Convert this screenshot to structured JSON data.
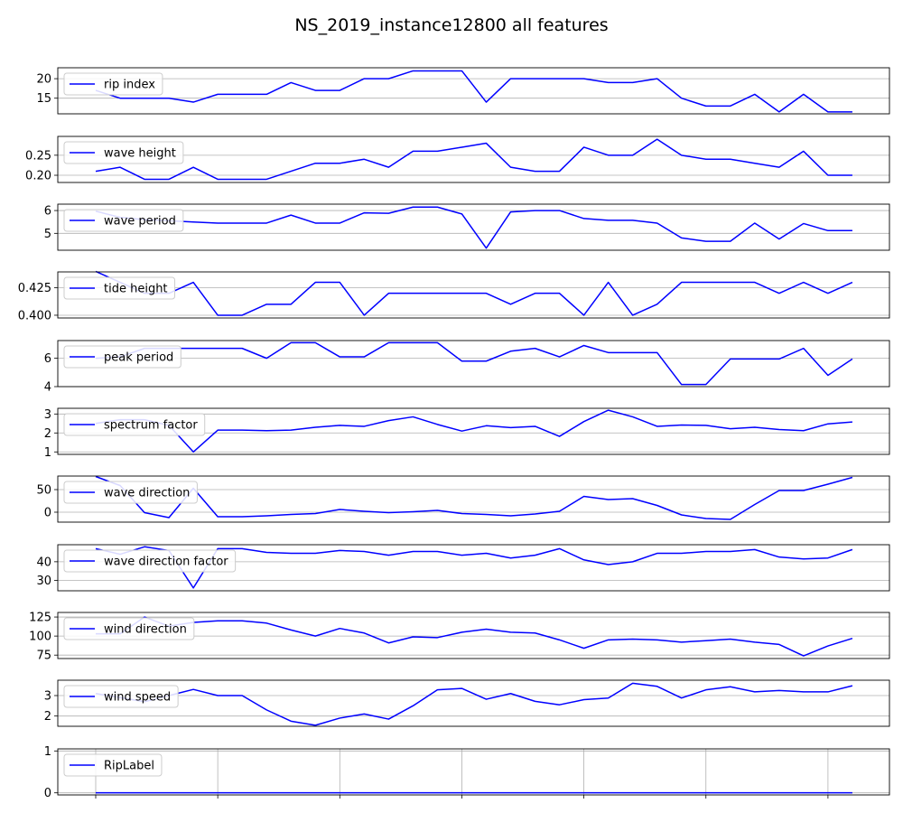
{
  "figure": {
    "title": "NS_2019_instance12800 all features"
  },
  "colors": {
    "series": "#0000ff",
    "grid": "#b0b0b0",
    "axis": "#000000",
    "legend_border": "#cccccc"
  },
  "chart_data": {
    "type": "line",
    "grid": true,
    "legend_placement": "upper-left",
    "n_points": 32,
    "xticks_count": 7,
    "panels": [
      {
        "name": "rip index",
        "ylim": [
          11,
          22.8
        ],
        "yticks": [
          15,
          20
        ],
        "ytick_labels": [
          "15",
          "20"
        ],
        "values": [
          17,
          15,
          15,
          15,
          14,
          16,
          16,
          16,
          19,
          17,
          17,
          20,
          20,
          22,
          22,
          22,
          14,
          20,
          20,
          20,
          20,
          19,
          19,
          20,
          15,
          13,
          13,
          16,
          11.5,
          16,
          11.5,
          11.5
        ]
      },
      {
        "name": "wave height",
        "ylim": [
          0.182,
          0.297
        ],
        "yticks": [
          0.2,
          0.25
        ],
        "ytick_labels": [
          "0.20",
          "0.25"
        ],
        "values": [
          0.21,
          0.22,
          0.19,
          0.19,
          0.22,
          0.19,
          0.19,
          0.19,
          0.21,
          0.23,
          0.23,
          0.24,
          0.22,
          0.26,
          0.26,
          0.27,
          0.28,
          0.22,
          0.21,
          0.21,
          0.27,
          0.25,
          0.25,
          0.29,
          0.25,
          0.24,
          0.24,
          0.23,
          0.22,
          0.26,
          0.2,
          0.2
        ]
      },
      {
        "name": "wave period",
        "ylim": [
          4.26,
          6.28
        ],
        "yticks": [
          5,
          6
        ],
        "ytick_labels": [
          "5",
          "6"
        ],
        "values": [
          5.97,
          5.7,
          5.6,
          5.55,
          5.5,
          5.45,
          5.45,
          5.45,
          5.8,
          5.45,
          5.45,
          5.9,
          5.88,
          6.15,
          6.15,
          5.85,
          4.35,
          5.94,
          6.0,
          6.0,
          5.65,
          5.57,
          5.57,
          5.45,
          4.8,
          4.65,
          4.65,
          5.45,
          4.75,
          5.43,
          5.12,
          5.12
        ]
      },
      {
        "name": "tide height",
        "ylim": [
          0.3975,
          0.4395
        ],
        "yticks": [
          0.4,
          0.425
        ],
        "ytick_labels": [
          "0.400",
          "0.425"
        ],
        "values": [
          0.44,
          0.43,
          0.42,
          0.42,
          0.43,
          0.4,
          0.4,
          0.41,
          0.41,
          0.43,
          0.43,
          0.4,
          0.42,
          0.42,
          0.42,
          0.42,
          0.42,
          0.41,
          0.42,
          0.42,
          0.4,
          0.43,
          0.4,
          0.41,
          0.43,
          0.43,
          0.43,
          0.43,
          0.42,
          0.43,
          0.42,
          0.43
        ]
      },
      {
        "name": "peak period",
        "ylim": [
          4.0,
          7.25
        ],
        "yticks": [
          4,
          6
        ],
        "ytick_labels": [
          "4",
          "6"
        ],
        "values": [
          6.0,
          6.1,
          6.7,
          6.7,
          6.7,
          6.7,
          6.7,
          6.0,
          7.1,
          7.1,
          6.1,
          6.1,
          7.1,
          7.1,
          7.1,
          5.8,
          5.8,
          6.5,
          6.7,
          6.1,
          6.9,
          6.4,
          6.4,
          6.4,
          4.15,
          4.15,
          5.95,
          5.95,
          5.95,
          6.7,
          4.8,
          5.95
        ]
      },
      {
        "name": "spectrum factor",
        "ylim": [
          0.87,
          3.3
        ],
        "yticks": [
          1,
          2,
          3
        ],
        "ytick_labels": [
          "1",
          "2",
          "3"
        ],
        "values": [
          2.5,
          2.7,
          2.7,
          2.4,
          1.0,
          2.15,
          2.15,
          2.12,
          2.15,
          2.3,
          2.4,
          2.35,
          2.65,
          2.85,
          2.45,
          2.1,
          2.38,
          2.28,
          2.35,
          1.82,
          2.6,
          3.2,
          2.85,
          2.35,
          2.42,
          2.4,
          2.22,
          2.3,
          2.18,
          2.12,
          2.48,
          2.58
        ]
      },
      {
        "name": "wave direction",
        "ylim": [
          -22,
          80
        ],
        "yticks": [
          0,
          50
        ],
        "ytick_labels": [
          "0",
          "50"
        ],
        "values": [
          79,
          59,
          -1,
          -12,
          53,
          -10,
          -10,
          -8,
          -5,
          -3,
          6,
          2,
          -1,
          1,
          4,
          -3,
          -5,
          -8,
          -4,
          2,
          35,
          28,
          30,
          15,
          -6,
          -14,
          -16,
          17,
          48,
          48,
          62,
          77
        ]
      },
      {
        "name": "wave direction factor",
        "ylim": [
          24.5,
          49.1
        ],
        "yticks": [
          30,
          40
        ],
        "ytick_labels": [
          "30",
          "40"
        ],
        "values": [
          47,
          44,
          48,
          46,
          26,
          47,
          47,
          45,
          44.5,
          44.5,
          46,
          45.5,
          43.5,
          45.5,
          45.5,
          43.5,
          44.5,
          42,
          43.5,
          47,
          41,
          38.5,
          40,
          44.5,
          44.5,
          45.5,
          45.5,
          46.5,
          42.5,
          41.5,
          42,
          46.5
        ]
      },
      {
        "name": "wind direction",
        "ylim": [
          70.5,
          131
        ],
        "yticks": [
          75,
          100,
          125
        ],
        "ytick_labels": [
          "75",
          "100",
          "125"
        ],
        "values": [
          103,
          103,
          125,
          113,
          118,
          120,
          120,
          117,
          108,
          100,
          110,
          104,
          91,
          99,
          98,
          105,
          109,
          105,
          104,
          95,
          84,
          95,
          96,
          95,
          92,
          94,
          96,
          92,
          89,
          74,
          87,
          97
        ]
      },
      {
        "name": "wind speed",
        "ylim": [
          1.5,
          3.75
        ],
        "yticks": [
          2,
          3
        ],
        "ytick_labels": [
          "2",
          "3"
        ],
        "values": [
          3.1,
          2.9,
          2.7,
          3.0,
          3.3,
          3.0,
          3.0,
          2.3,
          1.75,
          1.55,
          1.9,
          2.1,
          1.85,
          2.5,
          3.28,
          3.35,
          2.82,
          3.1,
          2.72,
          2.55,
          2.8,
          2.88,
          3.6,
          3.45,
          2.88,
          3.28,
          3.43,
          3.18,
          3.25,
          3.18,
          3.18,
          3.48
        ]
      },
      {
        "name": "RipLabel",
        "ylim": [
          -0.05,
          1.05
        ],
        "yticks": [
          0,
          1
        ],
        "ytick_labels": [
          "0",
          "1"
        ],
        "values": [
          0,
          0,
          0,
          0,
          0,
          0,
          0,
          0,
          0,
          0,
          0,
          0,
          0,
          0,
          0,
          0,
          0,
          0,
          0,
          0,
          0,
          0,
          0,
          0,
          0,
          0,
          0,
          0,
          0,
          0,
          0,
          0
        ]
      }
    ]
  }
}
